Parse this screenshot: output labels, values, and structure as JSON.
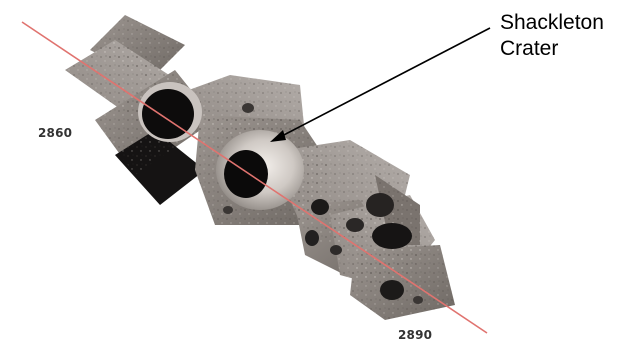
{
  "labels": {
    "left_value": "2860",
    "right_value": "2890"
  },
  "annotation": {
    "line1": "Shackleton",
    "line2": "Crater"
  },
  "colors": {
    "track_line": "#e0736f",
    "arrow": "#000000",
    "background": "#ffffff"
  }
}
